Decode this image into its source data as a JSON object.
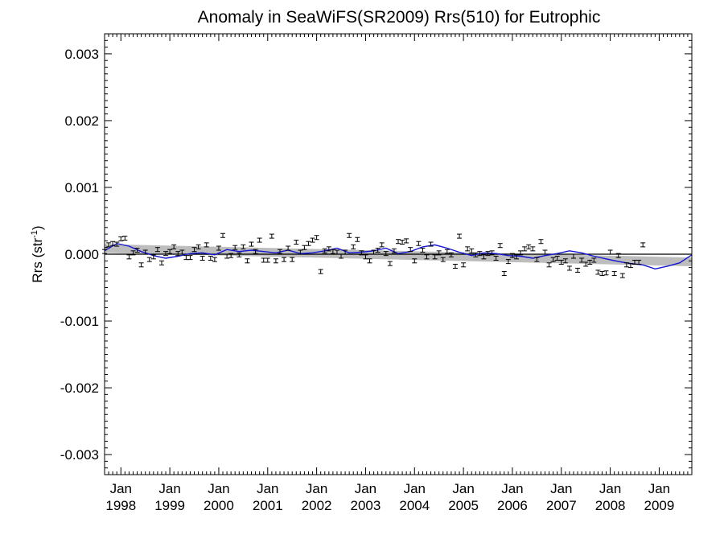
{
  "chart_data": {
    "type": "line",
    "title": "Anomaly in SeaWiFS(SR2009) Rrs(510) for Eutrophic",
    "ylabel_main": "Rrs (str",
    "ylabel_sup": "-1",
    "ylabel_close": ")",
    "xlabel": "",
    "xlim": [
      "1997-09",
      "2009-09"
    ],
    "ylim": [
      -0.0033,
      0.0033
    ],
    "y_ticks": [
      {
        "value": 0.003,
        "label": "0.003"
      },
      {
        "value": 0.002,
        "label": "0.002"
      },
      {
        "value": 0.001,
        "label": "0.001"
      },
      {
        "value": 0.0,
        "label": "0.000"
      },
      {
        "value": -0.001,
        "label": "-0.001"
      },
      {
        "value": -0.002,
        "label": "-0.002"
      },
      {
        "value": -0.003,
        "label": "-0.003"
      }
    ],
    "x_ticks": [
      {
        "month": "Jan",
        "year": "1998",
        "value": "1998-01"
      },
      {
        "month": "Jan",
        "year": "1999",
        "value": "1999-01"
      },
      {
        "month": "Jan",
        "year": "2000",
        "value": "2000-01"
      },
      {
        "month": "Jan",
        "year": "2001",
        "value": "2001-01"
      },
      {
        "month": "Jan",
        "year": "2002",
        "value": "2002-01"
      },
      {
        "month": "Jan",
        "year": "2003",
        "value": "2003-01"
      },
      {
        "month": "Jan",
        "year": "2004",
        "value": "2004-01"
      },
      {
        "month": "Jan",
        "year": "2005",
        "value": "2005-01"
      },
      {
        "month": "Jan",
        "year": "2006",
        "value": "2006-01"
      },
      {
        "month": "Jan",
        "year": "2007",
        "value": "2007-01"
      },
      {
        "month": "Jan",
        "year": "2008",
        "value": "2008-01"
      },
      {
        "month": "Jan",
        "year": "2009",
        "value": "2009-01"
      }
    ],
    "zero_line": 0.0,
    "trend_band": {
      "start": {
        "x": "1997-09",
        "lower": 2e-05,
        "upper": 0.00015
      },
      "end": {
        "x": "2009-09",
        "lower": -0.00018,
        "upper": -5e-05
      }
    },
    "series": [
      {
        "color": "#1515d6",
        "x": [
          "1997-09",
          "1997-12",
          "1998-03",
          "1998-06",
          "1998-09",
          "1998-12",
          "1999-03",
          "1999-06",
          "1999-09",
          "1999-12",
          "2000-03",
          "2000-06",
          "2000-09",
          "2000-12",
          "2001-03",
          "2001-06",
          "2001-09",
          "2001-12",
          "2002-03",
          "2002-06",
          "2002-09",
          "2002-12",
          "2003-03",
          "2003-06",
          "2003-09",
          "2003-12",
          "2004-03",
          "2004-06",
          "2004-09",
          "2004-12",
          "2005-03",
          "2005-06",
          "2005-09",
          "2005-12",
          "2006-03",
          "2006-06",
          "2006-09",
          "2006-12",
          "2007-03",
          "2007-06",
          "2007-09",
          "2007-12",
          "2008-03",
          "2008-06",
          "2008-09",
          "2008-12",
          "2009-03",
          "2009-06",
          "2009-09"
        ],
        "y": [
          5e-05,
          0.00016,
          0.00012,
          4e-05,
          -2e-05,
          -6e-05,
          -3e-05,
          1e-05,
          2e-05,
          -1e-05,
          7e-05,
          4e-05,
          6e-05,
          4e-05,
          2e-05,
          6e-05,
          1e-05,
          2e-05,
          5e-05,
          9e-05,
          2e-05,
          3e-05,
          5e-05,
          9e-05,
          1e-05,
          4e-05,
          0.00011,
          0.00014,
          9e-05,
          3e-05,
          -2e-05,
          2e-05,
          1e-05,
          -2e-05,
          -3e-05,
          -6e-05,
          -2e-05,
          1e-05,
          5e-05,
          2e-05,
          -3e-05,
          -7e-05,
          -0.00011,
          -0.00014,
          -0.00016,
          -0.00022,
          -0.00018,
          -0.00013,
          -1e-05
        ]
      }
    ],
    "points": [
      {
        "x": "1997-09",
        "y": 4e-05
      },
      {
        "x": "1997-10",
        "y": 0.00014
      },
      {
        "x": "1997-11",
        "y": 0.00016
      },
      {
        "x": "1997-12",
        "y": 0.00015
      },
      {
        "x": "1998-01",
        "y": 0.00023
      },
      {
        "x": "1998-02",
        "y": 0.00024
      },
      {
        "x": "1998-03",
        "y": -4e-05
      },
      {
        "x": "1998-04",
        "y": 2e-05
      },
      {
        "x": "1998-05",
        "y": 6e-05
      },
      {
        "x": "1998-06",
        "y": -0.00016
      },
      {
        "x": "1998-07",
        "y": 3e-05
      },
      {
        "x": "1998-08",
        "y": -8e-05
      },
      {
        "x": "1998-09",
        "y": -4e-05
      },
      {
        "x": "1998-10",
        "y": 7e-05
      },
      {
        "x": "1998-11",
        "y": -0.00013
      },
      {
        "x": "1998-12",
        "y": 1e-05
      },
      {
        "x": "1999-01",
        "y": 4e-05
      },
      {
        "x": "1999-02",
        "y": 0.00011
      },
      {
        "x": "1999-03",
        "y": 1e-05
      },
      {
        "x": "1999-04",
        "y": 3e-05
      },
      {
        "x": "1999-05",
        "y": -5e-05
      },
      {
        "x": "1999-06",
        "y": -5e-05
      },
      {
        "x": "1999-07",
        "y": 7e-05
      },
      {
        "x": "1999-08",
        "y": 0.00011
      },
      {
        "x": "1999-09",
        "y": -6e-05
      },
      {
        "x": "1999-10",
        "y": 0.00014
      },
      {
        "x": "1999-11",
        "y": -6e-05
      },
      {
        "x": "1999-12",
        "y": -8e-05
      },
      {
        "x": "2000-01",
        "y": 9e-05
      },
      {
        "x": "2000-02",
        "y": 0.00028
      },
      {
        "x": "2000-03",
        "y": -3e-05
      },
      {
        "x": "2000-04",
        "y": -2e-05
      },
      {
        "x": "2000-05",
        "y": 0.0001
      },
      {
        "x": "2000-06",
        "y": -1e-05
      },
      {
        "x": "2000-07",
        "y": 0.00011
      },
      {
        "x": "2000-08",
        "y": -0.0001
      },
      {
        "x": "2000-09",
        "y": 0.00015
      },
      {
        "x": "2000-10",
        "y": 4e-05
      },
      {
        "x": "2000-11",
        "y": 0.00021
      },
      {
        "x": "2000-12",
        "y": -9e-05
      },
      {
        "x": "2001-01",
        "y": -9e-05
      },
      {
        "x": "2001-02",
        "y": 0.00027
      },
      {
        "x": "2001-03",
        "y": -0.0001
      },
      {
        "x": "2001-04",
        "y": 4e-05
      },
      {
        "x": "2001-05",
        "y": -8e-05
      },
      {
        "x": "2001-06",
        "y": 9e-05
      },
      {
        "x": "2001-07",
        "y": -8e-05
      },
      {
        "x": "2001-08",
        "y": 0.00018
      },
      {
        "x": "2001-09",
        "y": 3e-05
      },
      {
        "x": "2001-10",
        "y": 0.0001
      },
      {
        "x": "2001-11",
        "y": 0.00016
      },
      {
        "x": "2001-12",
        "y": 0.00021
      },
      {
        "x": "2002-01",
        "y": 0.00025
      },
      {
        "x": "2002-02",
        "y": -0.00026
      },
      {
        "x": "2002-03",
        "y": 5e-05
      },
      {
        "x": "2002-04",
        "y": 8e-05
      },
      {
        "x": "2002-05",
        "y": 4e-05
      },
      {
        "x": "2002-06",
        "y": 3e-05
      },
      {
        "x": "2002-07",
        "y": -3e-05
      },
      {
        "x": "2002-08",
        "y": 3e-05
      },
      {
        "x": "2002-09",
        "y": 0.00028
      },
      {
        "x": "2002-10",
        "y": 0.00011
      },
      {
        "x": "2002-11",
        "y": 0.00022
      },
      {
        "x": "2002-12",
        "y": 2e-05
      },
      {
        "x": "2003-01",
        "y": -4e-05
      },
      {
        "x": "2003-02",
        "y": -0.0001
      },
      {
        "x": "2003-03",
        "y": 3e-05
      },
      {
        "x": "2003-04",
        "y": 6e-05
      },
      {
        "x": "2003-05",
        "y": 0.00014
      },
      {
        "x": "2003-06",
        "y": 1e-05
      },
      {
        "x": "2003-07",
        "y": -0.00014
      },
      {
        "x": "2003-08",
        "y": 5e-05
      },
      {
        "x": "2003-09",
        "y": 0.00019
      },
      {
        "x": "2003-10",
        "y": 0.00018
      },
      {
        "x": "2003-11",
        "y": 0.0002
      },
      {
        "x": "2003-12",
        "y": 7e-05
      },
      {
        "x": "2004-01",
        "y": -0.0001
      },
      {
        "x": "2004-02",
        "y": 0.00016
      },
      {
        "x": "2004-03",
        "y": 6e-05
      },
      {
        "x": "2004-04",
        "y": -4e-05
      },
      {
        "x": "2004-05",
        "y": 0.00015
      },
      {
        "x": "2004-06",
        "y": -4e-05
      },
      {
        "x": "2004-07",
        "y": 2e-05
      },
      {
        "x": "2004-08",
        "y": -8e-05
      },
      {
        "x": "2004-09",
        "y": 4e-05
      },
      {
        "x": "2004-10",
        "y": -1e-05
      },
      {
        "x": "2004-11",
        "y": -0.00018
      },
      {
        "x": "2004-12",
        "y": 0.00027
      },
      {
        "x": "2005-01",
        "y": -0.00016
      },
      {
        "x": "2005-02",
        "y": 8e-05
      },
      {
        "x": "2005-03",
        "y": 5e-05
      },
      {
        "x": "2005-04",
        "y": -1e-05
      },
      {
        "x": "2005-05",
        "y": 1e-05
      },
      {
        "x": "2005-06",
        "y": -4e-05
      },
      {
        "x": "2005-07",
        "y": 1e-05
      },
      {
        "x": "2005-08",
        "y": 2e-05
      },
      {
        "x": "2005-09",
        "y": -6e-05
      },
      {
        "x": "2005-10",
        "y": 0.00013
      },
      {
        "x": "2005-11",
        "y": -0.00029
      },
      {
        "x": "2005-12",
        "y": -0.00011
      },
      {
        "x": "2006-01",
        "y": -2e-05
      },
      {
        "x": "2006-02",
        "y": -4e-05
      },
      {
        "x": "2006-03",
        "y": 2e-05
      },
      {
        "x": "2006-04",
        "y": 8e-05
      },
      {
        "x": "2006-05",
        "y": 0.00011
      },
      {
        "x": "2006-06",
        "y": 8e-05
      },
      {
        "x": "2006-07",
        "y": -8e-05
      },
      {
        "x": "2006-08",
        "y": 0.00019
      },
      {
        "x": "2006-09",
        "y": 3e-05
      },
      {
        "x": "2006-10",
        "y": -0.00016
      },
      {
        "x": "2006-11",
        "y": -8e-05
      },
      {
        "x": "2006-12",
        "y": -6e-05
      },
      {
        "x": "2007-01",
        "y": -0.00012
      },
      {
        "x": "2007-02",
        "y": -0.0001
      },
      {
        "x": "2007-03",
        "y": -0.00021
      },
      {
        "x": "2007-04",
        "y": -3e-05
      },
      {
        "x": "2007-05",
        "y": -0.00024
      },
      {
        "x": "2007-06",
        "y": -9e-05
      },
      {
        "x": "2007-07",
        "y": -0.00015
      },
      {
        "x": "2007-08",
        "y": -0.00012
      },
      {
        "x": "2007-09",
        "y": -9e-05
      },
      {
        "x": "2007-10",
        "y": -0.00027
      },
      {
        "x": "2007-11",
        "y": -0.00029
      },
      {
        "x": "2007-12",
        "y": -0.00028
      },
      {
        "x": "2008-01",
        "y": 3e-05
      },
      {
        "x": "2008-02",
        "y": -0.00029
      },
      {
        "x": "2008-03",
        "y": -2e-05
      },
      {
        "x": "2008-04",
        "y": -0.00032
      },
      {
        "x": "2008-05",
        "y": -0.00016
      },
      {
        "x": "2008-06",
        "y": -0.00017
      },
      {
        "x": "2008-07",
        "y": -0.00012
      },
      {
        "x": "2008-08",
        "y": -0.00012
      },
      {
        "x": "2008-09",
        "y": 0.00014
      }
    ]
  }
}
